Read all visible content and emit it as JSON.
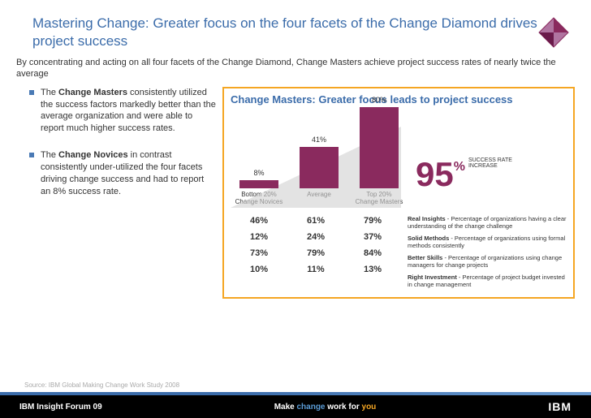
{
  "title": "Mastering Change: Greater focus on the four facets of the Change Diamond drives project success",
  "subtitle": "By concentrating and acting on all four facets of the Change Diamond, Change Masters achieve project success rates of nearly twice the average",
  "bullets": [
    {
      "pre": "The ",
      "bold": "Change Masters",
      "post": " consistently utilized the success factors markedly better than the average organization and were able to report much higher success rates."
    },
    {
      "pre": "The ",
      "bold": "Change Novices",
      "post": " in contrast consistently under-utilized the four facets driving change success and had to report an 8% success rate."
    }
  ],
  "chart": {
    "title": "Change Masters: Greater focus leads to project success",
    "bars": [
      {
        "label": "8%",
        "height": 10,
        "color": "#8a2a5e",
        "cat": "Bottom 20%\nChange Novices"
      },
      {
        "label": "41%",
        "height": 51,
        "color": "#8a2a5e",
        "cat": "Average"
      },
      {
        "label": "80%",
        "height": 100,
        "color": "#8a2a5e",
        "cat": "Top 20%\nChange Masters"
      }
    ],
    "bignum": "95",
    "bigpct": "%",
    "bigcap": "SUCCESS RATE\nINCREASE",
    "triangle_color": "#c9c9c9"
  },
  "table": {
    "cols": [
      [
        "46%",
        "12%",
        "73%",
        "10%"
      ],
      [
        "61%",
        "24%",
        "79%",
        "11%"
      ],
      [
        "79%",
        "37%",
        "84%",
        "13%"
      ]
    ],
    "desc": [
      {
        "b": "Real Insights",
        "t": " - Percentage of organizations having a clear understanding of the change challenge"
      },
      {
        "b": "Solid Methods",
        "t": " - Percentage of organizations using formal methods consistently"
      },
      {
        "b": "Better Skills",
        "t": " - Percentage of organizations using change managers for change projects"
      },
      {
        "b": "Right Investment",
        "t": " - Percentage of project budget invested in change management"
      }
    ]
  },
  "source": "Source: IBM Global Making Change Work Study 2008",
  "footer": {
    "left": "IBM Insight Forum 09",
    "mid_pre": "Make ",
    "mid_c1": "change",
    "mid_mid": " work for ",
    "mid_c2": "you",
    "logo": "IBM"
  },
  "diamond_color": "#8a2a5e"
}
